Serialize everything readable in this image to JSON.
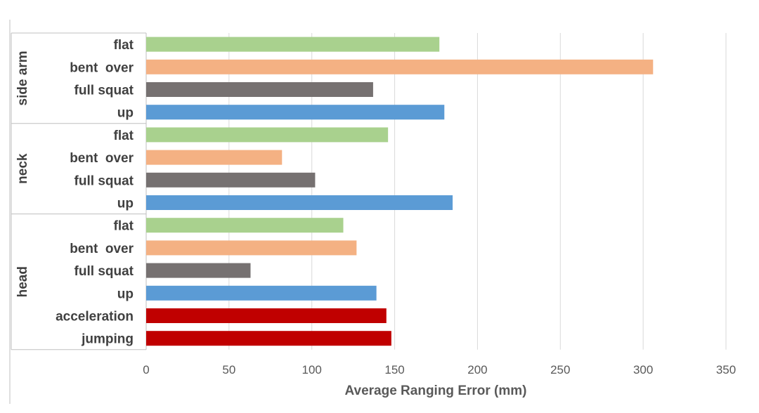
{
  "chart_data": {
    "type": "bar",
    "orientation": "horizontal",
    "title": "",
    "xlabel": "Average Ranging Error (mm)",
    "ylabel": "",
    "xlim": [
      0,
      350
    ],
    "xticks": [
      0,
      50,
      100,
      150,
      200,
      250,
      300,
      350
    ],
    "grid": true,
    "groups": [
      {
        "name": "side arm",
        "bars": [
          {
            "label": "flat",
            "value": 177,
            "color": "#a9d18e"
          },
          {
            "label": "bent  over",
            "value": 306,
            "color": "#f4b183"
          },
          {
            "label": "full squat",
            "value": 137,
            "color": "#767171"
          },
          {
            "label": "up",
            "value": 180,
            "color": "#5b9bd5"
          }
        ]
      },
      {
        "name": "neck",
        "bars": [
          {
            "label": "flat",
            "value": 146,
            "color": "#a9d18e"
          },
          {
            "label": "bent  over",
            "value": 82,
            "color": "#f4b183"
          },
          {
            "label": "full squat",
            "value": 102,
            "color": "#767171"
          },
          {
            "label": "up",
            "value": 185,
            "color": "#5b9bd5"
          }
        ]
      },
      {
        "name": "head",
        "bars": [
          {
            "label": "flat",
            "value": 119,
            "color": "#a9d18e"
          },
          {
            "label": "bent  over",
            "value": 127,
            "color": "#f4b183"
          },
          {
            "label": "full squat",
            "value": 63,
            "color": "#767171"
          },
          {
            "label": "up",
            "value": 139,
            "color": "#5b9bd5"
          },
          {
            "label": "acceleration",
            "value": 145,
            "color": "#c00000"
          },
          {
            "label": "jumping",
            "value": 148,
            "color": "#c00000"
          }
        ]
      }
    ]
  }
}
